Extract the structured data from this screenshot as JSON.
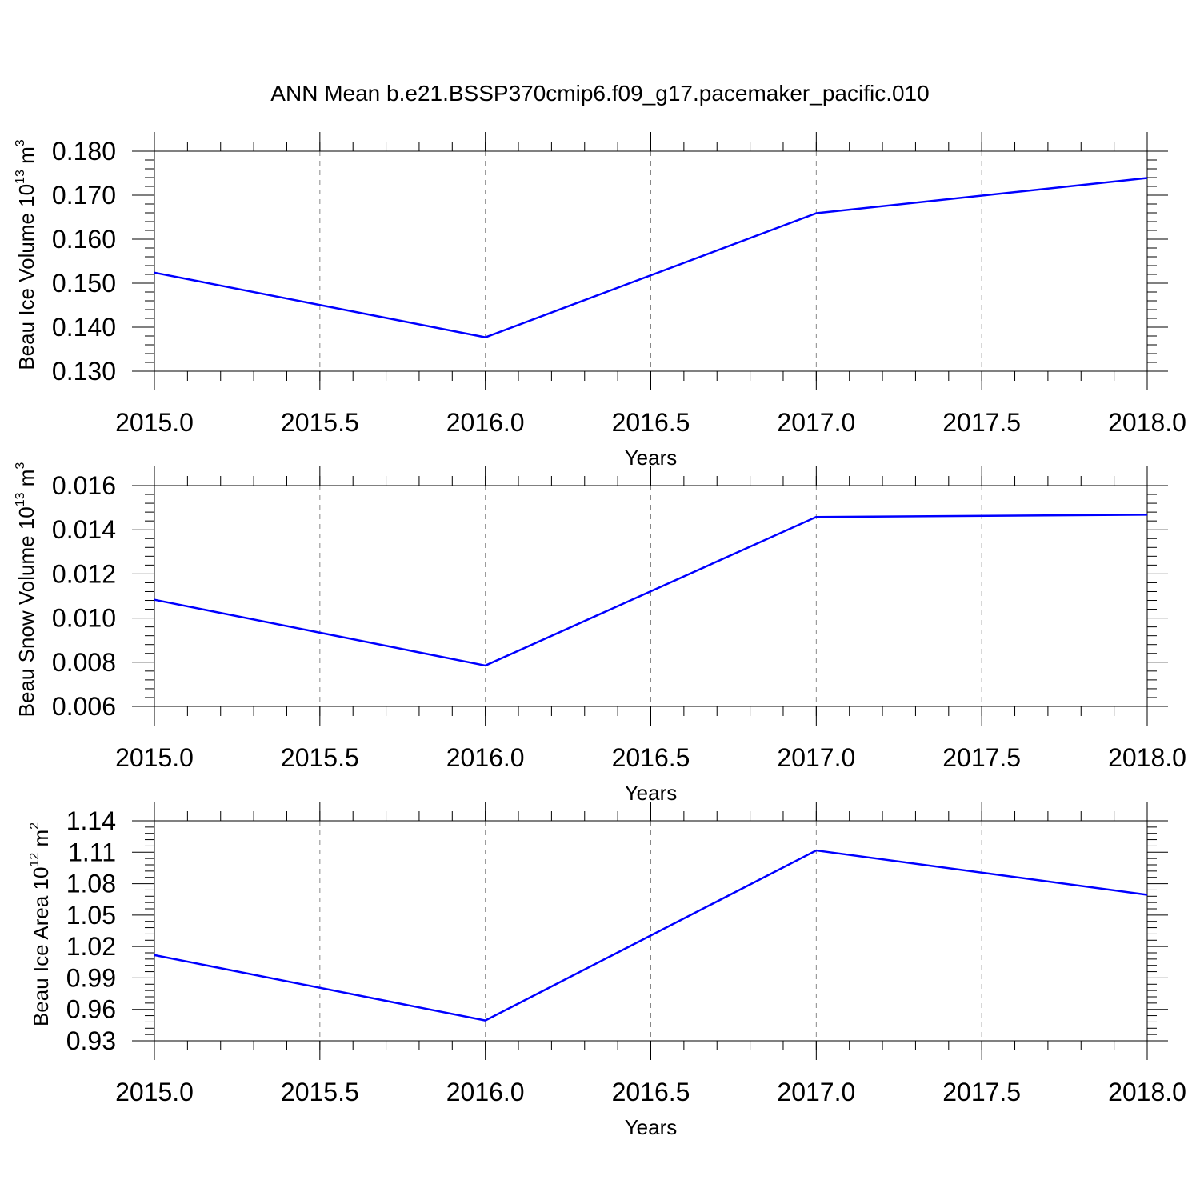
{
  "title": "ANN Mean b.e21.BSSP370cmip6.f09_g17.pacemaker_pacific.010",
  "colors": {
    "series": "#0000ff",
    "axis": "#000000",
    "grid": "#888888"
  },
  "chart_data": [
    {
      "type": "line",
      "xlabel": "Years",
      "ylabel": {
        "text": "Beau Ice Volume 10",
        "exp": "13",
        "unit": " m",
        "unit_exp": "3"
      },
      "x": [
        2015.0,
        2016.0,
        2017.0,
        2018.0
      ],
      "values": [
        0.1524,
        0.1377,
        0.1659,
        0.1739
      ],
      "xlim": [
        2015.0,
        2018.0
      ],
      "ylim": [
        0.13,
        0.18
      ],
      "xticks": [
        2015.0,
        2015.5,
        2016.0,
        2016.5,
        2017.0,
        2017.5,
        2018.0
      ],
      "xticklabels": [
        "2015.0",
        "2015.5",
        "2016.0",
        "2016.5",
        "2017.0",
        "2017.5",
        "2018.0"
      ],
      "yticks": [
        0.13,
        0.14,
        0.15,
        0.16,
        0.17,
        0.18
      ],
      "yticklabels": [
        "0.130",
        "0.140",
        "0.150",
        "0.160",
        "0.170",
        "0.180"
      ],
      "grid": "vertical dashed"
    },
    {
      "type": "line",
      "xlabel": "Years",
      "ylabel": {
        "text": "Beau Snow Volume 10",
        "exp": "13",
        "unit": " m",
        "unit_exp": "3"
      },
      "x": [
        2015.0,
        2016.0,
        2017.0,
        2018.0
      ],
      "values": [
        0.01083,
        0.00785,
        0.01458,
        0.01468
      ],
      "xlim": [
        2015.0,
        2018.0
      ],
      "ylim": [
        0.006,
        0.016
      ],
      "xticks": [
        2015.0,
        2015.5,
        2016.0,
        2016.5,
        2017.0,
        2017.5,
        2018.0
      ],
      "xticklabels": [
        "2015.0",
        "2015.5",
        "2016.0",
        "2016.5",
        "2017.0",
        "2017.5",
        "2018.0"
      ],
      "yticks": [
        0.006,
        0.008,
        0.01,
        0.012,
        0.014,
        0.016
      ],
      "yticklabels": [
        "0.006",
        "0.008",
        "0.010",
        "0.012",
        "0.014",
        "0.016"
      ],
      "grid": "vertical dashed"
    },
    {
      "type": "line",
      "xlabel": "Years",
      "ylabel": {
        "text": "Beau Ice Area 10",
        "exp": "12",
        "unit": " m",
        "unit_exp": "2"
      },
      "x": [
        2015.0,
        2016.0,
        2017.0,
        2018.0
      ],
      "values": [
        1.0118,
        0.9494,
        1.1117,
        1.0694
      ],
      "xlim": [
        2015.0,
        2018.0
      ],
      "ylim": [
        0.93,
        1.14
      ],
      "xticks": [
        2015.0,
        2015.5,
        2016.0,
        2016.5,
        2017.0,
        2017.5,
        2018.0
      ],
      "xticklabels": [
        "2015.0",
        "2015.5",
        "2016.0",
        "2016.5",
        "2017.0",
        "2017.5",
        "2018.0"
      ],
      "yticks": [
        0.93,
        0.96,
        0.99,
        1.02,
        1.05,
        1.08,
        1.11,
        1.14
      ],
      "yticklabels": [
        "0.93",
        "0.96",
        "0.99",
        "1.02",
        "1.05",
        "1.08",
        "1.11",
        "1.14"
      ],
      "grid": "vertical dashed"
    }
  ]
}
